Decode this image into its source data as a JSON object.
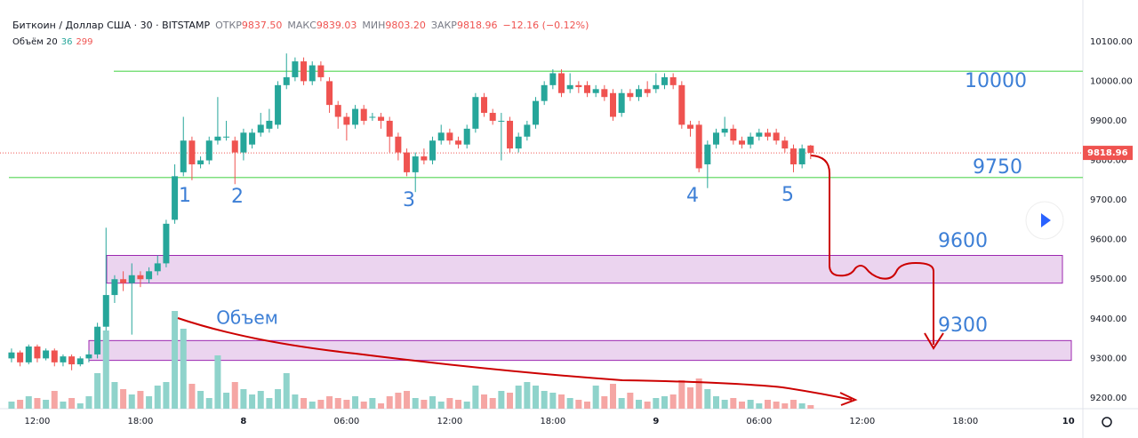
{
  "header": {
    "symbol": "Биткоин / Доллар США · 30 · BITSTAMP",
    "ohlc": [
      {
        "label": "ОТКР",
        "value": "9837.50"
      },
      {
        "label": "МАКС",
        "value": "9839.03"
      },
      {
        "label": "МИН",
        "value": "9803.20"
      },
      {
        "label": "ЗАКР",
        "value": "9818.96"
      }
    ],
    "change": "−12.16 (−0.12%)",
    "volume_label": "Объём 20",
    "volume_values": [
      "36",
      "299"
    ]
  },
  "chart_data": {
    "type": "candlestick",
    "x": [
      10.5,
      11,
      11.5,
      12,
      12.5,
      13,
      13.5,
      14,
      14.5,
      15,
      15.5,
      16,
      16.5,
      17,
      17.5,
      18,
      18.5,
      19,
      19.5,
      20,
      20.5,
      21,
      21.5,
      22,
      22.5,
      23,
      23.5,
      24,
      24.5,
      25,
      25.5,
      26,
      26.5,
      27,
      27.5,
      28,
      28.5,
      29,
      29.5,
      30,
      30.5,
      31,
      31.5,
      32,
      32.5,
      33,
      33.5,
      34,
      34.5,
      35,
      35.5,
      36,
      36.5,
      37,
      37.5,
      38,
      38.5,
      39,
      39.5,
      40,
      40.5,
      41,
      41.5,
      42,
      42.5,
      43,
      43.5,
      44,
      44.5,
      45,
      45.5,
      46,
      46.5,
      47,
      47.5,
      48,
      48.5,
      49,
      49.5,
      50,
      50.5,
      51,
      51.5,
      52,
      52.5,
      53,
      53.5,
      54,
      54.5,
      55,
      55.5,
      56,
      56.5,
      57
    ],
    "open": [
      9300,
      9315,
      9290,
      9330,
      9300,
      9320,
      9290,
      9305,
      9285,
      9300,
      9310,
      9380,
      9460,
      9500,
      9490,
      9510,
      9500,
      9520,
      9540,
      9650,
      9770,
      9850,
      9790,
      9800,
      9850,
      9860,
      9850,
      9820,
      9840,
      9870,
      9880,
      9890,
      9990,
      10010,
      10050,
      10000,
      10040,
      10000,
      9940,
      9910,
      9890,
      9930,
      9910,
      9910,
      9900,
      9860,
      9820,
      9770,
      9810,
      9800,
      9850,
      9870,
      9850,
      9840,
      9880,
      9960,
      9920,
      9900,
      9900,
      9830,
      9860,
      9890,
      9950,
      9990,
      10020,
      9980,
      9990,
      9990,
      9970,
      9980,
      9970,
      9920,
      9970,
      9960,
      9980,
      9980,
      9990,
      10010,
      9990,
      9890,
      9890,
      9790,
      9840,
      9870,
      9880,
      9850,
      9840,
      9860,
      9870,
      9870,
      9850,
      9830,
      9790,
      9837.5
    ],
    "high": [
      9325,
      9320,
      9335,
      9335,
      9325,
      9325,
      9310,
      9310,
      9305,
      9320,
      9390,
      9630,
      9510,
      9520,
      9540,
      9520,
      9530,
      9560,
      9650,
      9790,
      9910,
      9860,
      9810,
      9860,
      9960,
      9900,
      9860,
      9880,
      9880,
      9920,
      9930,
      10000,
      10070,
      10060,
      10060,
      10050,
      10050,
      10010,
      9950,
      9920,
      9940,
      9940,
      9920,
      9920,
      9910,
      9870,
      9830,
      9820,
      9830,
      9860,
      9890,
      9880,
      9860,
      9890,
      9970,
      9970,
      9930,
      9920,
      9910,
      9870,
      9900,
      9960,
      10000,
      10030,
      10030,
      10020,
      10000,
      10000,
      9990,
      9990,
      9980,
      9980,
      9980,
      9990,
      10000,
      10020,
      10020,
      10020,
      10000,
      9900,
      9900,
      9850,
      9880,
      9910,
      9890,
      9860,
      9870,
      9880,
      9880,
      9880,
      9860,
      9840,
      9840,
      9839.03
    ],
    "low": [
      9290,
      9280,
      9285,
      9290,
      9295,
      9280,
      9280,
      9270,
      9280,
      9290,
      9300,
      9370,
      9440,
      9470,
      9360,
      9480,
      9490,
      9510,
      9530,
      9640,
      9760,
      9750,
      9780,
      9790,
      9840,
      9850,
      9740,
      9800,
      9830,
      9860,
      9870,
      9880,
      9980,
      10000,
      9990,
      9990,
      10000,
      9920,
      9880,
      9850,
      9880,
      9890,
      9900,
      9880,
      9820,
      9800,
      9760,
      9720,
      9790,
      9790,
      9840,
      9840,
      9830,
      9830,
      9870,
      9910,
      9890,
      9800,
      9820,
      9820,
      9850,
      9880,
      9940,
      9980,
      9960,
      9970,
      9970,
      9960,
      9960,
      9950,
      9900,
      9910,
      9950,
      9950,
      9960,
      9970,
      9980,
      9980,
      9880,
      9860,
      9770,
      9730,
      9830,
      9860,
      9840,
      9830,
      9830,
      9850,
      9850,
      9840,
      9820,
      9770,
      9780,
      9803.2
    ],
    "close": [
      9315,
      9290,
      9330,
      9300,
      9320,
      9290,
      9305,
      9285,
      9300,
      9310,
      9380,
      9460,
      9500,
      9490,
      9510,
      9500,
      9520,
      9540,
      9640,
      9760,
      9850,
      9790,
      9800,
      9850,
      9860,
      9860,
      9820,
      9870,
      9870,
      9890,
      9900,
      9990,
      10010,
      10050,
      10000,
      10040,
      10010,
      9940,
      9910,
      9890,
      9930,
      9900,
      9910,
      9900,
      9860,
      9820,
      9770,
      9810,
      9800,
      9850,
      9870,
      9850,
      9840,
      9880,
      9960,
      9920,
      9900,
      9900,
      9830,
      9860,
      9890,
      9950,
      9990,
      10020,
      9970,
      9990,
      9985,
      9970,
      9980,
      9960,
      9910,
      9970,
      9960,
      9980,
      9970,
      9990,
      10010,
      9990,
      9890,
      9880,
      9780,
      9840,
      9870,
      9880,
      9850,
      9840,
      9860,
      9870,
      9860,
      9850,
      9830,
      9790,
      9830,
      9818.96
    ],
    "volume": [
      8,
      10,
      14,
      12,
      10,
      20,
      8,
      12,
      6,
      14,
      40,
      88,
      30,
      22,
      16,
      20,
      14,
      26,
      30,
      110,
      90,
      28,
      20,
      12,
      60,
      18,
      30,
      22,
      16,
      20,
      12,
      22,
      40,
      16,
      12,
      8,
      10,
      14,
      12,
      10,
      14,
      8,
      12,
      6,
      14,
      18,
      20,
      12,
      10,
      14,
      8,
      12,
      10,
      8,
      26,
      16,
      12,
      20,
      18,
      26,
      30,
      26,
      20,
      18,
      16,
      12,
      10,
      8,
      26,
      14,
      28,
      12,
      18,
      10,
      8,
      12,
      14,
      16,
      32,
      24,
      34,
      22,
      14,
      10,
      12,
      8,
      10,
      6,
      10,
      8,
      6,
      10,
      6,
      4
    ],
    "xlim": [
      9.83,
      72.84
    ],
    "xticks": [
      {
        "value": 12,
        "label": "12:00"
      },
      {
        "value": 18,
        "label": "18:00"
      },
      {
        "value": 24,
        "label": "8"
      },
      {
        "value": 30,
        "label": "06:00"
      },
      {
        "value": 36,
        "label": "12:00"
      },
      {
        "value": 42,
        "label": "18:00"
      },
      {
        "value": 48,
        "label": "9"
      },
      {
        "value": 54,
        "label": "06:00"
      },
      {
        "value": 60,
        "label": "12:00"
      },
      {
        "value": 66,
        "label": "18:00"
      },
      {
        "value": 72,
        "label": "10"
      }
    ],
    "ylim": [
      9173,
      10205
    ],
    "yticks": [
      {
        "value": 9200,
        "label": "9200.00"
      },
      {
        "value": 9300,
        "label": "9300.00"
      },
      {
        "value": 9400,
        "label": "9400.00"
      },
      {
        "value": 9500,
        "label": "9500.00"
      },
      {
        "value": 9600,
        "label": "9600.00"
      },
      {
        "value": 9700,
        "label": "9700.00"
      },
      {
        "value": 9800,
        "label": "9800.00"
      },
      {
        "value": 9900,
        "label": "9900.00"
      },
      {
        "value": 10000,
        "label": "10000.00"
      },
      {
        "value": 10100,
        "label": "10100.00"
      }
    ],
    "colors": {
      "up": "#26a69a",
      "down": "#ef5350",
      "volume_up": "#8fd3cb",
      "volume_down": "#f5a6a4",
      "level": "#7ee07e",
      "zone": "#9c27b0",
      "annotation": "#3d7fd6"
    },
    "last_price": {
      "value": 9818.96,
      "label": "9818.96"
    },
    "levels": [
      10025,
      9757
    ],
    "zones": [
      [
        9490,
        9560
      ],
      [
        9295,
        9345
      ]
    ],
    "annotations": [
      "10000",
      "9750",
      "9600",
      "9300",
      "1",
      "2",
      "3",
      "4",
      "5",
      "Объем"
    ]
  }
}
